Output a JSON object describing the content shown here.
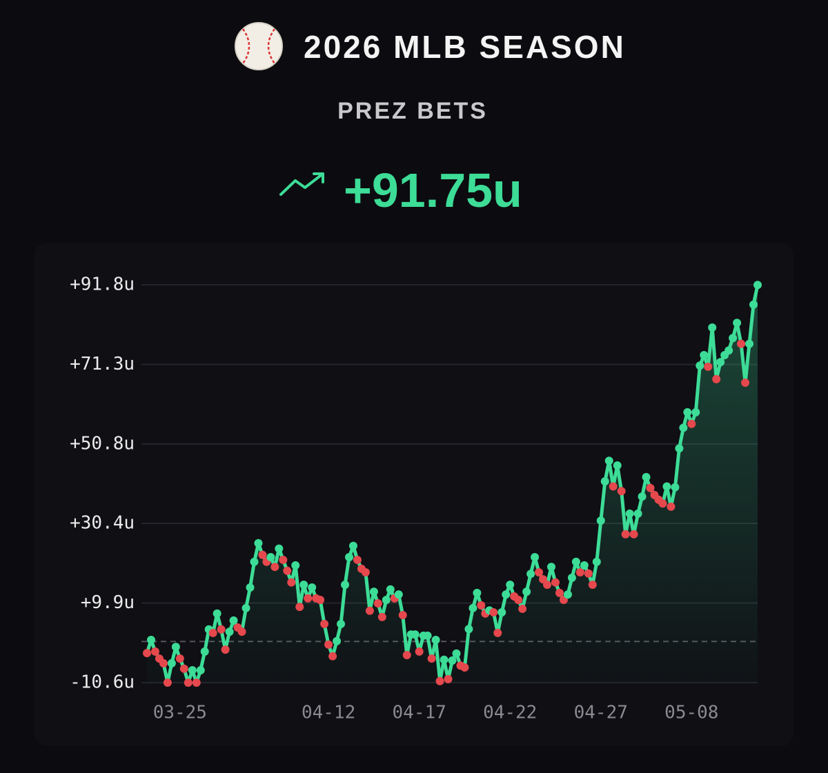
{
  "chart_data": {
    "type": "line",
    "title": "2026 MLB SEASON",
    "subtitle": "PREZ BETS",
    "headline": "+91.75u",
    "categories": [
      null,
      null,
      null,
      null,
      null,
      null,
      null,
      null,
      "03-25",
      null,
      null,
      null,
      null,
      null,
      null,
      null,
      null,
      null,
      null,
      null,
      null,
      null,
      null,
      null,
      null,
      null,
      null,
      null,
      null,
      null,
      null,
      null,
      null,
      null,
      null,
      null,
      null,
      null,
      null,
      null,
      null,
      null,
      null,
      null,
      "04-12",
      null,
      null,
      null,
      null,
      null,
      null,
      null,
      null,
      null,
      null,
      null,
      null,
      null,
      null,
      null,
      null,
      null,
      null,
      null,
      null,
      null,
      "04-17",
      null,
      null,
      null,
      null,
      null,
      null,
      null,
      null,
      null,
      null,
      null,
      null,
      null,
      null,
      null,
      null,
      null,
      null,
      null,
      null,
      null,
      "04-22",
      null,
      null,
      null,
      null,
      null,
      null,
      null,
      null,
      null,
      null,
      null,
      null,
      null,
      null,
      null,
      null,
      null,
      null,
      null,
      null,
      null,
      "04-27",
      null,
      null,
      null,
      null,
      null,
      null,
      null,
      null,
      null,
      null,
      null,
      null,
      null,
      null,
      null,
      null,
      null,
      null,
      null,
      null,
      null,
      "05-08",
      null,
      null,
      null,
      null,
      null,
      null,
      null,
      null,
      null,
      null,
      null,
      null,
      null,
      null,
      null,
      null
    ],
    "values": [
      -3.0,
      0.4,
      -2.6,
      -4.4,
      -5.6,
      -10.6,
      -5.6,
      -1.4,
      -4.4,
      -7.0,
      -10.6,
      -7.4,
      -10.6,
      -7.4,
      -2.6,
      3.1,
      2.2,
      7.2,
      3.1,
      -2.1,
      2.5,
      5.4,
      3.6,
      2.5,
      8.6,
      13.9,
      20.5,
      25.3,
      22.3,
      20.5,
      21.7,
      19.2,
      23.9,
      21.0,
      18.2,
      15.2,
      19.6,
      8.9,
      14.6,
      11.1,
      13.9,
      11.1,
      10.7,
      4.5,
      -0.8,
      -3.8,
      0.1,
      4.5,
      14.6,
      21.7,
      24.6,
      21.0,
      18.7,
      17.8,
      7.9,
      12.8,
      9.8,
      6.3,
      10.7,
      13.4,
      11.1,
      12.1,
      6.8,
      -3.5,
      1.8,
      1.8,
      -2.6,
      1.5,
      1.5,
      -4.4,
      0.4,
      -10.2,
      -4.7,
      -9.7,
      -4.9,
      -3.1,
      -6.2,
      -6.7,
      3.2,
      8.6,
      12.5,
      9.3,
      7.2,
      8.0,
      7.5,
      2.2,
      7.5,
      12.1,
      14.6,
      11.6,
      10.7,
      8.4,
      12.8,
      17.4,
      21.7,
      17.8,
      16.0,
      14.6,
      19.2,
      15.2,
      12.5,
      10.7,
      12.1,
      16.4,
      20.5,
      17.8,
      19.6,
      17.5,
      14.6,
      20.5,
      31.1,
      41.2,
      46.5,
      39.9,
      45.3,
      38.7,
      27.6,
      32.9,
      27.6,
      32.9,
      37.3,
      42.3,
      39.5,
      37.7,
      36.5,
      35.5,
      39.9,
      34.7,
      39.7,
      49.7,
      55.0,
      59.0,
      56.0,
      59.0,
      71.0,
      73.7,
      70.7,
      80.8,
      67.5,
      71.9,
      73.7,
      74.9,
      78.1,
      82.0,
      76.6,
      66.6,
      76.6,
      86.7,
      91.75
    ],
    "color": "#3ddc97",
    "down_color": "#e5484d",
    "reference_line": 0,
    "ylim": [
      -10.6,
      91.8
    ],
    "yticks": [
      {
        "value": -10.6,
        "label": "-10.6u"
      },
      {
        "value": 9.9,
        "label": "+9.9u"
      },
      {
        "value": 30.4,
        "label": "+30.4u"
      },
      {
        "value": 50.8,
        "label": "+50.8u"
      },
      {
        "value": 71.3,
        "label": "+71.3u"
      },
      {
        "value": 91.8,
        "label": "+91.8u"
      }
    ],
    "grid": true
  }
}
